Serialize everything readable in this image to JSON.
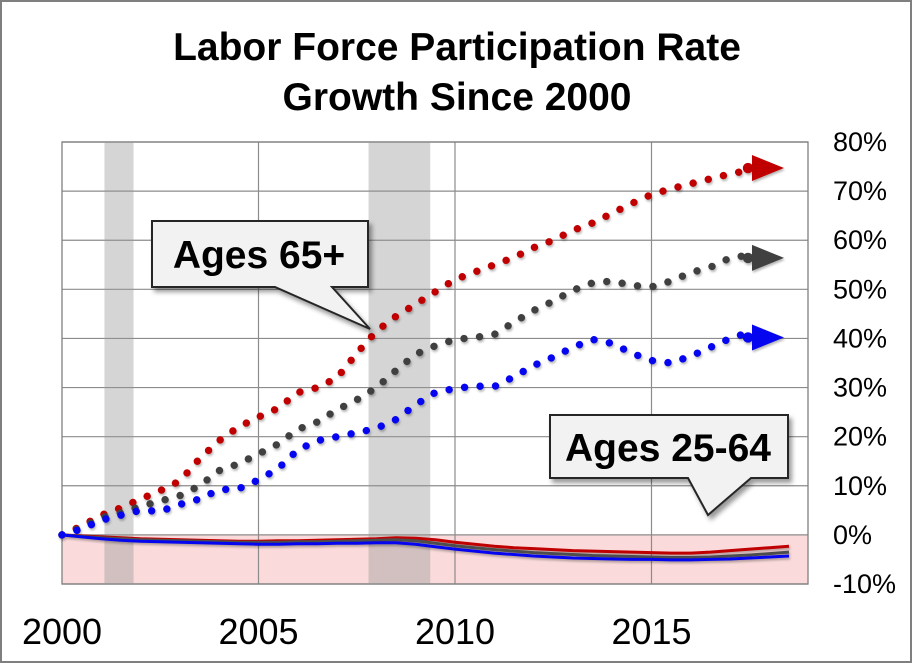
{
  "title": {
    "line1": "Labor Force Participation Rate",
    "line2": "Growth Since 2000"
  },
  "chart_data": {
    "type": "line",
    "title": "Labor Force Participation Rate Growth Since 2000",
    "x_start_year": 2000,
    "x_step_years": 0.5,
    "xlim": [
      2000,
      2019
    ],
    "ylim": [
      -10,
      80
    ],
    "grid": true,
    "y_tick_values": [
      80,
      70,
      60,
      50,
      40,
      30,
      20,
      10,
      0,
      -10
    ],
    "y_tick_labels": [
      "80%",
      "70%",
      "60%",
      "50%",
      "40%",
      "30%",
      "20%",
      "10%",
      "0%",
      "-10%"
    ],
    "x_tick_values": [
      2000,
      2005,
      2010,
      2015
    ],
    "x_tick_labels": [
      "2000",
      "2005",
      "2010",
      "2015"
    ],
    "recession_bands": [
      [
        2001.08,
        2001.82
      ],
      [
        2007.8,
        2009.37
      ]
    ],
    "negative_zone": {
      "from": 0,
      "to": -10,
      "color": "rgba(243,168,168,0.42)"
    },
    "annotations": [
      {
        "label": "Ages 65+",
        "points_to": "dotted series near 2008"
      },
      {
        "label": "Ages 25-64",
        "points_to": "solid series near 0%"
      }
    ],
    "series": [
      {
        "name": "ages-65plus-red",
        "group": "Ages 65+",
        "style": "dotted",
        "color": "#C00000",
        "arrow_value": 74.7,
        "values": [
          0,
          1.8,
          4,
          5.5,
          7.3,
          9,
          11,
          15.5,
          19.2,
          22,
          24,
          25.8,
          29,
          30,
          32,
          37,
          41.5,
          44.5,
          47,
          49.5,
          52,
          53.5,
          55,
          56.5,
          58.5,
          60,
          62,
          63.5,
          65.5,
          67.5,
          69.3,
          70.5,
          71.5,
          72.5,
          73.5,
          74.3
        ]
      },
      {
        "name": "ages-65plus-gray",
        "group": "Ages 65+",
        "style": "dotted",
        "color": "#404040",
        "arrow_value": 56.4,
        "values": [
          0,
          1.5,
          3.5,
          4.5,
          5.8,
          6.9,
          8,
          10,
          13.1,
          14.5,
          16.5,
          18.5,
          21.5,
          23,
          25.5,
          27.5,
          30,
          33.5,
          36.8,
          38.5,
          39.8,
          40.2,
          40.8,
          43.3,
          45.7,
          47.6,
          49.8,
          51.3,
          51.7,
          50.8,
          50.5,
          51.7,
          53.4,
          54.5,
          56.4,
          57
        ]
      },
      {
        "name": "ages-65plus-blue",
        "group": "Ages 65+",
        "style": "dotted",
        "color": "#0505F0",
        "arrow_value": 40.2,
        "values": [
          0,
          1.2,
          3,
          4,
          5,
          4.8,
          6.2,
          7.3,
          9.2,
          9.4,
          11.2,
          13.5,
          17.3,
          19.2,
          20,
          20.8,
          21.7,
          23.5,
          26.5,
          29,
          29.8,
          30.3,
          30.2,
          32.2,
          34.5,
          36.2,
          38.2,
          39.8,
          39,
          37,
          35.5,
          35,
          36.4,
          38.2,
          40,
          41.3
        ]
      },
      {
        "name": "ages-25-64-red",
        "group": "Ages 25-64",
        "style": "solid",
        "color": "#C00000",
        "values": [
          0,
          -0.2,
          -0.4,
          -0.6,
          -0.8,
          -0.9,
          -1,
          -1.1,
          -1.2,
          -1.3,
          -1.3,
          -1.2,
          -1.2,
          -1.1,
          -1,
          -0.9,
          -0.8,
          -0.6,
          -0.7,
          -1,
          -1.5,
          -1.9,
          -2.3,
          -2.6,
          -2.8,
          -3,
          -3.2,
          -3.3,
          -3.4,
          -3.5,
          -3.6,
          -3.7,
          -3.7,
          -3.5,
          -3.2,
          -2.9,
          -2.6,
          -2.3
        ]
      },
      {
        "name": "ages-25-64-gray",
        "group": "Ages 25-64",
        "style": "solid",
        "color": "#4D4D4D",
        "values": [
          0,
          -0.3,
          -0.6,
          -0.8,
          -1,
          -1.1,
          -1.2,
          -1.3,
          -1.4,
          -1.5,
          -1.5,
          -1.5,
          -1.4,
          -1.4,
          -1.3,
          -1.2,
          -1.1,
          -1,
          -1.2,
          -1.7,
          -2.2,
          -2.6,
          -3,
          -3.3,
          -3.6,
          -3.8,
          -4,
          -4.2,
          -4.3,
          -4.4,
          -4.5,
          -4.6,
          -4.6,
          -4.5,
          -4.3,
          -4.1,
          -3.8,
          -3.5
        ]
      },
      {
        "name": "ages-25-64-blue",
        "group": "Ages 25-64",
        "style": "solid",
        "color": "#0505F0",
        "values": [
          0,
          -0.4,
          -0.8,
          -1.1,
          -1.3,
          -1.4,
          -1.5,
          -1.6,
          -1.7,
          -1.8,
          -1.9,
          -1.9,
          -1.8,
          -1.8,
          -1.7,
          -1.7,
          -1.6,
          -1.6,
          -1.9,
          -2.4,
          -2.9,
          -3.3,
          -3.7,
          -4,
          -4.3,
          -4.5,
          -4.7,
          -4.8,
          -4.9,
          -5,
          -5,
          -5.1,
          -5.1,
          -5,
          -4.9,
          -4.7,
          -4.5,
          -4.3
        ]
      }
    ]
  },
  "colors": {
    "red": "#C00000",
    "gray": "#404040",
    "blue": "#0505F0",
    "grid": "#8C8C8C",
    "plot_border": "#808080",
    "recession_band": "rgba(150,150,150,0.40)",
    "frame_border": "#7F7F7F",
    "callout_fill": "#F2F2F2",
    "callout_border": "#262626",
    "text": "#000000"
  }
}
